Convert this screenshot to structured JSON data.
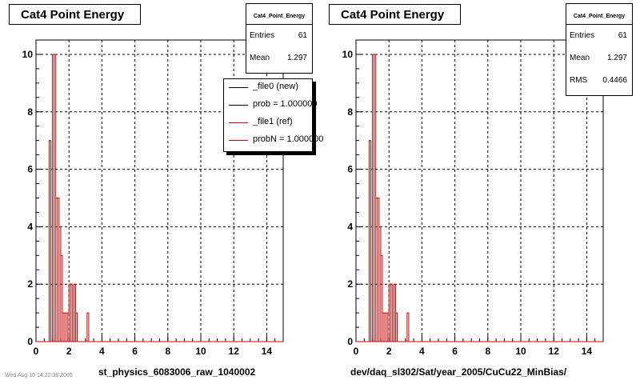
{
  "left_panel": {
    "title": "Cat4 Point Energy",
    "stats": {
      "name": "Cat4_Point_Energy",
      "entries_label": "Entries",
      "entries_value": "61",
      "mean_label": "Mean",
      "mean_value": "1.297"
    },
    "legend": [
      {
        "label": "_file0 (new)",
        "color": "#000000"
      },
      {
        "label": "prob = 1.000000",
        "color": "#000000"
      },
      {
        "label": "_file1 (ref)",
        "color": "#cc0000"
      },
      {
        "label": "probN = 1.000000",
        "color": "#cc0000"
      }
    ],
    "xlabel": "st_physics_6083006_raw_1040002"
  },
  "right_panel": {
    "title": "Cat4 Point Energy",
    "stats": {
      "name": "Cat4_Point_Energy",
      "entries_label": "Entries",
      "entries_value": "61",
      "mean_label": "Mean",
      "mean_value": "1.297",
      "rms_label": "RMS",
      "rms_value": "0.4466"
    },
    "xlabel": "dev/daq_sl302/Sat/year_2005/CuCu22_MinBias/"
  },
  "footer_text": "Wed Aug 10 14:22:38 2005",
  "chart_data": [
    {
      "type": "bar",
      "title": "Cat4 Point Energy",
      "xlim": [
        0,
        15
      ],
      "ylim": [
        0,
        10.5
      ],
      "xticks": [
        0,
        2,
        4,
        6,
        8,
        10,
        12,
        14
      ],
      "yticks": [
        0,
        2,
        4,
        6,
        8,
        10
      ],
      "grid": true,
      "series": [
        {
          "name": "_file1 (ref)",
          "color": "#cc0000",
          "bin_width": 0.1,
          "bin_starts": [
            0.8,
            0.9,
            1.0,
            1.1,
            1.2,
            1.3,
            1.4,
            1.5,
            1.6,
            1.7,
            1.8,
            1.9,
            2.0,
            2.1,
            2.2,
            2.3,
            2.4,
            3.1
          ],
          "values": [
            7,
            6,
            10,
            10,
            5,
            5,
            4,
            3,
            1,
            1,
            1,
            1,
            2,
            2,
            0,
            2,
            1,
            1
          ]
        }
      ]
    },
    {
      "type": "bar",
      "title": "Cat4 Point Energy",
      "xlim": [
        0,
        15
      ],
      "ylim": [
        0,
        10.5
      ],
      "xticks": [
        0,
        2,
        4,
        6,
        8,
        10,
        12,
        14
      ],
      "yticks": [
        0,
        2,
        4,
        6,
        8,
        10
      ],
      "grid": true,
      "series": [
        {
          "name": "",
          "color": "#cc0000",
          "bin_width": 0.1,
          "bin_starts": [
            0.8,
            0.9,
            1.0,
            1.1,
            1.2,
            1.3,
            1.4,
            1.5,
            1.6,
            1.7,
            1.8,
            1.9,
            2.0,
            2.1,
            2.2,
            2.3,
            2.4,
            3.1
          ],
          "values": [
            7,
            6,
            10,
            10,
            5,
            5,
            4,
            3,
            1,
            1,
            1,
            1,
            2,
            2,
            0,
            2,
            1,
            1
          ]
        }
      ]
    }
  ]
}
